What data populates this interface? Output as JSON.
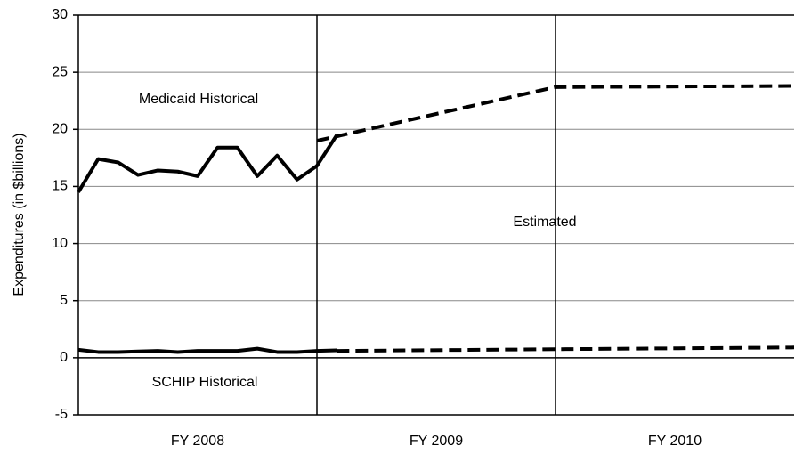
{
  "chart_data": {
    "type": "line",
    "y_label": "Expenditures (in $billions)",
    "categories": [
      "FY 2008",
      "FY 2009",
      "FY 2010"
    ],
    "xlim": [
      0,
      36
    ],
    "ylim": [
      -5,
      30
    ],
    "yticks": [
      -5,
      0,
      5,
      10,
      15,
      20,
      25,
      30
    ],
    "grid": true,
    "annotations": [
      "Medicaid Historical",
      "Estimated",
      "SCHIP Historical"
    ],
    "series": [
      {
        "color": "#000000",
        "dashed": false,
        "x": [
          0,
          1,
          2,
          3,
          4,
          5,
          6,
          7,
          8,
          9,
          10,
          11,
          12,
          13
        ],
        "values": [
          14.5,
          17.4,
          17.1,
          16.0,
          16.4,
          16.3,
          15.9,
          18.4,
          18.4,
          15.9,
          17.7,
          15.6,
          16.8,
          19.5
        ]
      },
      {
        "color": "#000000",
        "dashed": true,
        "x": [
          12,
          24,
          36
        ],
        "values": [
          19.0,
          23.7,
          23.8
        ]
      },
      {
        "color": "#000000",
        "dashed": false,
        "x": [
          0,
          1,
          2,
          3,
          4,
          5,
          6,
          7,
          8,
          9,
          10,
          11,
          12,
          13
        ],
        "values": [
          0.7,
          0.5,
          0.5,
          0.55,
          0.6,
          0.5,
          0.6,
          0.6,
          0.6,
          0.8,
          0.5,
          0.5,
          0.6,
          0.65
        ]
      },
      {
        "color": "#000000",
        "dashed": true,
        "x": [
          13,
          24,
          36
        ],
        "values": [
          0.6,
          0.75,
          0.9
        ]
      }
    ]
  }
}
